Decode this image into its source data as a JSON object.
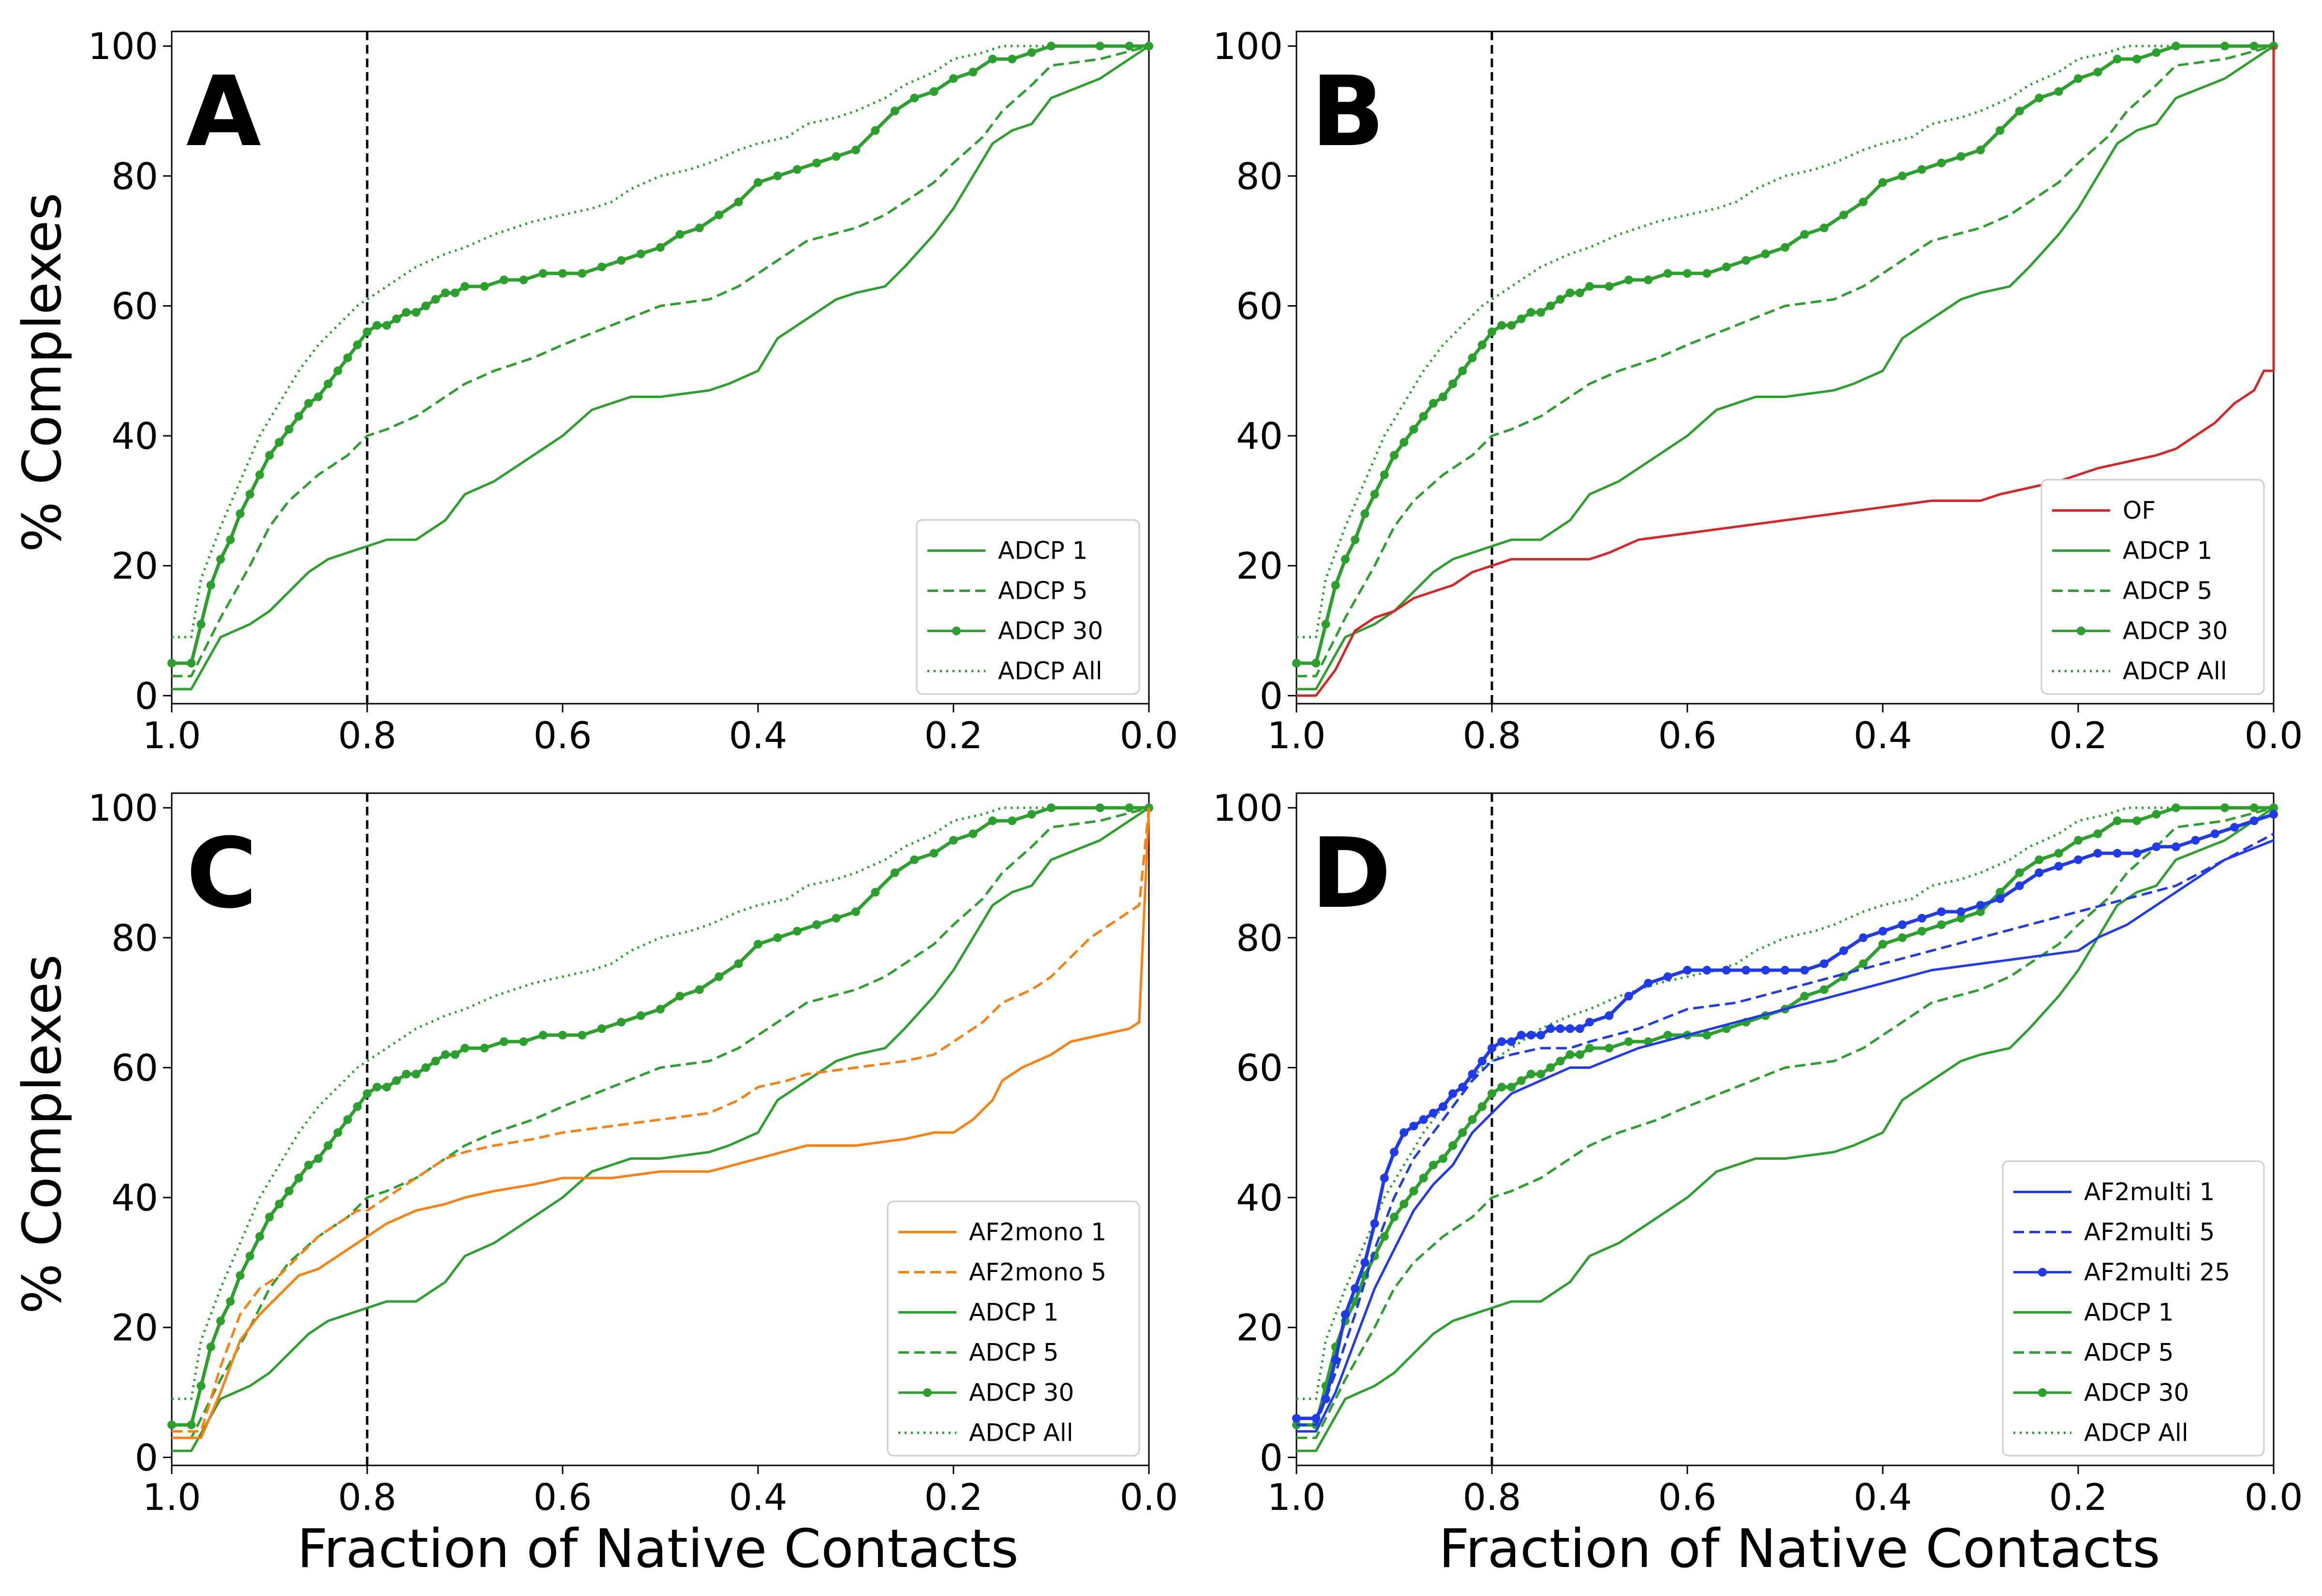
{
  "figure": {
    "ylabel": "% Complexes",
    "xlabel": "Fraction of Native Contacts",
    "threshold": 0.8
  },
  "colors": {
    "green": "#2ca02c",
    "red": "#d62728",
    "orange": "#ff7f0e",
    "blue": "#1f3ae8"
  },
  "chart_data": [
    {
      "type": "line",
      "panel": "A",
      "xlim": [
        1.0,
        0.0
      ],
      "ylim": [
        0,
        100
      ],
      "xticks": [
        "1.0",
        "0.8",
        "0.6",
        "0.4",
        "0.2",
        "0.0"
      ],
      "yticks": [
        "0",
        "20",
        "40",
        "60",
        "80",
        "100"
      ],
      "legend_position": "bottom-right",
      "series": [
        {
          "name": "ADCP 1",
          "color": "green",
          "style": "solid",
          "x": [
            1.0,
            0.98,
            0.95,
            0.92,
            0.9,
            0.88,
            0.86,
            0.84,
            0.82,
            0.8,
            0.78,
            0.75,
            0.72,
            0.7,
            0.67,
            0.63,
            0.6,
            0.57,
            0.55,
            0.53,
            0.5,
            0.45,
            0.43,
            0.4,
            0.38,
            0.35,
            0.32,
            0.3,
            0.27,
            0.25,
            0.22,
            0.2,
            0.18,
            0.16,
            0.14,
            0.12,
            0.1,
            0.05,
            0.02,
            0.0
          ],
          "y": [
            1,
            1,
            9,
            11,
            13,
            16,
            19,
            21,
            22,
            23,
            24,
            24,
            27,
            31,
            33,
            37,
            40,
            44,
            45,
            46,
            46,
            47,
            48,
            50,
            55,
            58,
            61,
            62,
            63,
            66,
            71,
            75,
            80,
            85,
            87,
            88,
            92,
            95,
            98,
            100
          ]
        },
        {
          "name": "ADCP 5",
          "color": "green",
          "style": "dashed",
          "x": [
            1.0,
            0.98,
            0.95,
            0.92,
            0.9,
            0.88,
            0.85,
            0.82,
            0.8,
            0.78,
            0.75,
            0.72,
            0.7,
            0.67,
            0.63,
            0.6,
            0.55,
            0.5,
            0.45,
            0.42,
            0.38,
            0.35,
            0.3,
            0.27,
            0.25,
            0.22,
            0.2,
            0.17,
            0.15,
            0.12,
            0.1,
            0.05,
            0.0
          ],
          "y": [
            3,
            3,
            12,
            20,
            26,
            30,
            34,
            37,
            40,
            41,
            43,
            46,
            48,
            50,
            52,
            54,
            57,
            60,
            61,
            63,
            67,
            70,
            72,
            74,
            76,
            79,
            82,
            86,
            90,
            94,
            97,
            98,
            100
          ]
        },
        {
          "name": "ADCP 30",
          "color": "green",
          "style": "markers",
          "x": [
            1.0,
            0.98,
            0.97,
            0.96,
            0.95,
            0.94,
            0.93,
            0.92,
            0.91,
            0.9,
            0.89,
            0.88,
            0.87,
            0.86,
            0.85,
            0.84,
            0.83,
            0.82,
            0.81,
            0.8,
            0.79,
            0.78,
            0.77,
            0.76,
            0.75,
            0.74,
            0.73,
            0.72,
            0.71,
            0.7,
            0.68,
            0.66,
            0.64,
            0.62,
            0.6,
            0.58,
            0.56,
            0.54,
            0.52,
            0.5,
            0.48,
            0.46,
            0.44,
            0.42,
            0.4,
            0.38,
            0.36,
            0.34,
            0.32,
            0.3,
            0.28,
            0.26,
            0.24,
            0.22,
            0.2,
            0.18,
            0.16,
            0.14,
            0.12,
            0.1,
            0.05,
            0.02,
            0.0
          ],
          "y": [
            5,
            5,
            11,
            17,
            21,
            24,
            28,
            31,
            34,
            37,
            39,
            41,
            43,
            45,
            46,
            48,
            50,
            52,
            54,
            56,
            57,
            57,
            58,
            59,
            59,
            60,
            61,
            62,
            62,
            63,
            63,
            64,
            64,
            65,
            65,
            65,
            66,
            67,
            68,
            69,
            71,
            72,
            74,
            76,
            79,
            80,
            81,
            82,
            83,
            84,
            87,
            90,
            92,
            93,
            95,
            96,
            98,
            98,
            99,
            100,
            100,
            100,
            100
          ]
        },
        {
          "name": "ADCP All",
          "color": "green",
          "style": "dotted",
          "x": [
            1.0,
            0.98,
            0.97,
            0.95,
            0.93,
            0.91,
            0.89,
            0.87,
            0.85,
            0.83,
            0.81,
            0.8,
            0.78,
            0.75,
            0.72,
            0.7,
            0.67,
            0.63,
            0.6,
            0.57,
            0.55,
            0.53,
            0.5,
            0.47,
            0.45,
            0.42,
            0.4,
            0.37,
            0.35,
            0.32,
            0.3,
            0.27,
            0.25,
            0.22,
            0.2,
            0.17,
            0.15,
            0.12,
            0.1,
            0.0
          ],
          "y": [
            9,
            9,
            18,
            26,
            33,
            40,
            45,
            50,
            54,
            57,
            60,
            61,
            63,
            66,
            68,
            69,
            71,
            73,
            74,
            75,
            76,
            78,
            80,
            81,
            82,
            84,
            85,
            86,
            88,
            89,
            90,
            92,
            94,
            96,
            98,
            99,
            100,
            100,
            100,
            100
          ]
        }
      ]
    },
    {
      "type": "line",
      "panel": "B",
      "xlim": [
        1.0,
        0.0
      ],
      "ylim": [
        0,
        100
      ],
      "xticks": [
        "1.0",
        "0.8",
        "0.6",
        "0.4",
        "0.2",
        "0.0"
      ],
      "yticks": [
        "0",
        "20",
        "40",
        "60",
        "80",
        "100"
      ],
      "legend_position": "bottom-right",
      "series": [
        {
          "name": "OF",
          "color": "red",
          "style": "solid",
          "x": [
            1.0,
            0.98,
            0.97,
            0.96,
            0.95,
            0.94,
            0.92,
            0.9,
            0.88,
            0.86,
            0.84,
            0.82,
            0.8,
            0.78,
            0.75,
            0.72,
            0.7,
            0.68,
            0.65,
            0.6,
            0.55,
            0.5,
            0.45,
            0.4,
            0.35,
            0.3,
            0.28,
            0.25,
            0.22,
            0.2,
            0.18,
            0.15,
            0.12,
            0.1,
            0.08,
            0.06,
            0.04,
            0.02,
            0.01,
            0.0,
            0.0
          ],
          "y": [
            0,
            0,
            2,
            4,
            7,
            10,
            12,
            13,
            15,
            16,
            17,
            19,
            20,
            21,
            21,
            21,
            21,
            22,
            24,
            25,
            26,
            27,
            28,
            29,
            30,
            30,
            31,
            32,
            33,
            34,
            35,
            36,
            37,
            38,
            40,
            42,
            45,
            47,
            50,
            50,
            100
          ]
        },
        {
          "name": "ADCP 1",
          "color": "green",
          "style": "solid",
          "same_as": "A"
        },
        {
          "name": "ADCP 5",
          "color": "green",
          "style": "dashed",
          "same_as": "A"
        },
        {
          "name": "ADCP 30",
          "color": "green",
          "style": "markers",
          "same_as": "A"
        },
        {
          "name": "ADCP All",
          "color": "green",
          "style": "dotted",
          "same_as": "A"
        }
      ]
    },
    {
      "type": "line",
      "panel": "C",
      "xlim": [
        1.0,
        0.0
      ],
      "ylim": [
        0,
        100
      ],
      "xticks": [
        "1.0",
        "0.8",
        "0.6",
        "0.4",
        "0.2",
        "0.0"
      ],
      "yticks": [
        "0",
        "20",
        "40",
        "60",
        "80",
        "100"
      ],
      "legend_position": "bottom-right",
      "series": [
        {
          "name": "AF2mono 1",
          "color": "orange",
          "style": "solid",
          "x": [
            1.0,
            0.97,
            0.95,
            0.93,
            0.91,
            0.89,
            0.87,
            0.85,
            0.83,
            0.81,
            0.8,
            0.78,
            0.75,
            0.72,
            0.7,
            0.67,
            0.63,
            0.6,
            0.55,
            0.5,
            0.45,
            0.4,
            0.35,
            0.3,
            0.25,
            0.22,
            0.2,
            0.18,
            0.16,
            0.15,
            0.13,
            0.1,
            0.08,
            0.05,
            0.02,
            0.01,
            0.0
          ],
          "y": [
            3,
            3,
            10,
            18,
            22,
            25,
            28,
            29,
            31,
            33,
            34,
            36,
            38,
            39,
            40,
            41,
            42,
            43,
            43,
            44,
            44,
            46,
            48,
            48,
            49,
            50,
            50,
            52,
            55,
            58,
            60,
            62,
            64,
            65,
            66,
            67,
            100
          ]
        },
        {
          "name": "AF2mono 5",
          "color": "orange",
          "style": "dashed",
          "x": [
            1.0,
            0.97,
            0.95,
            0.93,
            0.91,
            0.89,
            0.87,
            0.85,
            0.83,
            0.81,
            0.8,
            0.78,
            0.75,
            0.72,
            0.7,
            0.67,
            0.63,
            0.6,
            0.55,
            0.5,
            0.45,
            0.42,
            0.4,
            0.37,
            0.35,
            0.3,
            0.25,
            0.22,
            0.2,
            0.17,
            0.15,
            0.12,
            0.1,
            0.08,
            0.06,
            0.04,
            0.02,
            0.01,
            0.0
          ],
          "y": [
            4,
            4,
            14,
            22,
            26,
            28,
            31,
            34,
            36,
            38,
            38,
            40,
            43,
            46,
            47,
            48,
            49,
            50,
            51,
            52,
            53,
            55,
            57,
            58,
            59,
            60,
            61,
            62,
            64,
            67,
            70,
            72,
            74,
            77,
            80,
            82,
            84,
            85,
            100
          ]
        },
        {
          "name": "ADCP 1",
          "color": "green",
          "style": "solid",
          "same_as": "A"
        },
        {
          "name": "ADCP 5",
          "color": "green",
          "style": "dashed",
          "same_as": "A"
        },
        {
          "name": "ADCP 30",
          "color": "green",
          "style": "markers",
          "same_as": "A"
        },
        {
          "name": "ADCP All",
          "color": "green",
          "style": "dotted",
          "same_as": "A"
        }
      ]
    },
    {
      "type": "line",
      "panel": "D",
      "xlim": [
        1.0,
        0.0
      ],
      "ylim": [
        0,
        100
      ],
      "xticks": [
        "1.0",
        "0.8",
        "0.6",
        "0.4",
        "0.2",
        "0.0"
      ],
      "yticks": [
        "0",
        "20",
        "40",
        "60",
        "80",
        "100"
      ],
      "legend_position": "bottom-right",
      "series": [
        {
          "name": "AF2multi 1",
          "color": "blue",
          "style": "solid",
          "x": [
            1.0,
            0.98,
            0.96,
            0.94,
            0.92,
            0.9,
            0.88,
            0.86,
            0.84,
            0.82,
            0.8,
            0.78,
            0.75,
            0.72,
            0.7,
            0.65,
            0.6,
            0.55,
            0.5,
            0.45,
            0.4,
            0.35,
            0.3,
            0.25,
            0.2,
            0.18,
            0.15,
            0.12,
            0.1,
            0.05,
            0.0
          ],
          "y": [
            4,
            4,
            10,
            18,
            26,
            32,
            38,
            42,
            45,
            50,
            53,
            56,
            58,
            60,
            60,
            63,
            65,
            67,
            69,
            71,
            73,
            75,
            76,
            77,
            78,
            80,
            82,
            85,
            87,
            92,
            95
          ]
        },
        {
          "name": "AF2multi 5",
          "color": "blue",
          "style": "dashed",
          "x": [
            1.0,
            0.98,
            0.96,
            0.94,
            0.92,
            0.9,
            0.88,
            0.86,
            0.84,
            0.82,
            0.8,
            0.78,
            0.75,
            0.72,
            0.7,
            0.65,
            0.6,
            0.55,
            0.5,
            0.45,
            0.4,
            0.35,
            0.3,
            0.25,
            0.2,
            0.15,
            0.1,
            0.05,
            0.0
          ],
          "y": [
            5,
            5,
            13,
            22,
            32,
            40,
            46,
            50,
            54,
            58,
            61,
            62,
            63,
            63,
            64,
            66,
            69,
            70,
            72,
            74,
            76,
            78,
            80,
            82,
            84,
            86,
            88,
            92,
            96
          ]
        },
        {
          "name": "AF2multi 25",
          "color": "blue",
          "style": "markers",
          "x": [
            1.0,
            0.98,
            0.97,
            0.96,
            0.95,
            0.94,
            0.93,
            0.92,
            0.91,
            0.9,
            0.89,
            0.88,
            0.87,
            0.86,
            0.85,
            0.84,
            0.83,
            0.82,
            0.81,
            0.8,
            0.79,
            0.78,
            0.77,
            0.76,
            0.75,
            0.74,
            0.73,
            0.72,
            0.71,
            0.7,
            0.68,
            0.66,
            0.64,
            0.62,
            0.6,
            0.58,
            0.56,
            0.54,
            0.52,
            0.5,
            0.48,
            0.46,
            0.44,
            0.42,
            0.4,
            0.38,
            0.36,
            0.34,
            0.32,
            0.3,
            0.28,
            0.26,
            0.24,
            0.22,
            0.2,
            0.18,
            0.16,
            0.14,
            0.12,
            0.1,
            0.08,
            0.06,
            0.04,
            0.02,
            0.0
          ],
          "y": [
            6,
            6,
            9,
            15,
            22,
            26,
            30,
            36,
            43,
            47,
            50,
            51,
            52,
            53,
            54,
            56,
            57,
            59,
            61,
            63,
            64,
            64,
            65,
            65,
            65,
            66,
            66,
            66,
            66,
            67,
            68,
            71,
            73,
            74,
            75,
            75,
            75,
            75,
            75,
            75,
            75,
            76,
            78,
            80,
            81,
            82,
            83,
            84,
            84,
            85,
            86,
            88,
            90,
            91,
            92,
            93,
            93,
            93,
            94,
            94,
            95,
            96,
            97,
            98,
            99
          ]
        },
        {
          "name": "ADCP 1",
          "color": "green",
          "style": "solid",
          "same_as": "A"
        },
        {
          "name": "ADCP 5",
          "color": "green",
          "style": "dashed",
          "same_as": "A"
        },
        {
          "name": "ADCP 30",
          "color": "green",
          "style": "markers",
          "same_as": "A"
        },
        {
          "name": "ADCP All",
          "color": "green",
          "style": "dotted",
          "same_as": "A"
        }
      ]
    }
  ]
}
